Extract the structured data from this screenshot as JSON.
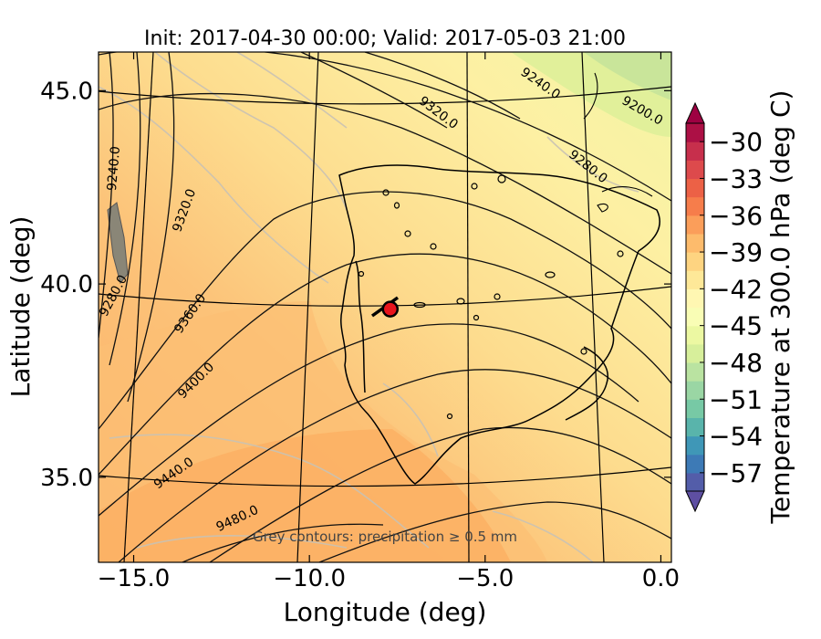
{
  "chart_data": {
    "type": "heatmap",
    "title": "Init: 2017-04-30 00:00; Valid: 2017-05-03 21:00",
    "xlabel": "Longitude (deg)",
    "ylabel": "Latitude (deg)",
    "xlim": [
      -16.0,
      0.3
    ],
    "ylim": [
      32.8,
      46.0
    ],
    "xticks": [
      {
        "value": -15.0,
        "label": "−15.0"
      },
      {
        "value": -10.0,
        "label": "−10.0"
      },
      {
        "value": -5.0,
        "label": "−5.0"
      },
      {
        "value": 0.0,
        "label": "0.0"
      }
    ],
    "yticks": [
      {
        "value": 35.0,
        "label": "35.0"
      },
      {
        "value": 40.0,
        "label": "40.0"
      },
      {
        "value": 45.0,
        "label": "45.0"
      }
    ],
    "annotation": "Grey contours: precipitation ≥ 0.5 mm",
    "contour_labels": [
      "9200.0",
      "9240.0",
      "9280.0",
      "9320.0",
      "9360.0",
      "9400.0",
      "9440.0",
      "9480.0"
    ],
    "marker": {
      "lon": -7.7,
      "lat": 39.35,
      "color": "#e8141c"
    },
    "colorbar": {
      "label": "Temperature at 300.0 hPa (deg C)",
      "ticks": [
        {
          "value": -30,
          "label": "−30"
        },
        {
          "value": -33,
          "label": "−33"
        },
        {
          "value": -36,
          "label": "−36"
        },
        {
          "value": -39,
          "label": "−39"
        },
        {
          "value": -42,
          "label": "−42"
        },
        {
          "value": -45,
          "label": "−45"
        },
        {
          "value": -48,
          "label": "−48"
        },
        {
          "value": -51,
          "label": "−51"
        },
        {
          "value": -54,
          "label": "−54"
        },
        {
          "value": -57,
          "label": "−57"
        }
      ],
      "range": [
        -58.5,
        -28.5
      ],
      "colors": [
        "#5e4fa2",
        "#3288bd",
        "#66c2a5",
        "#abdda4",
        "#e6f598",
        "#ffffbf",
        "#fee08b",
        "#fdae61",
        "#f46d43",
        "#d53e4f",
        "#9e0142"
      ]
    }
  }
}
